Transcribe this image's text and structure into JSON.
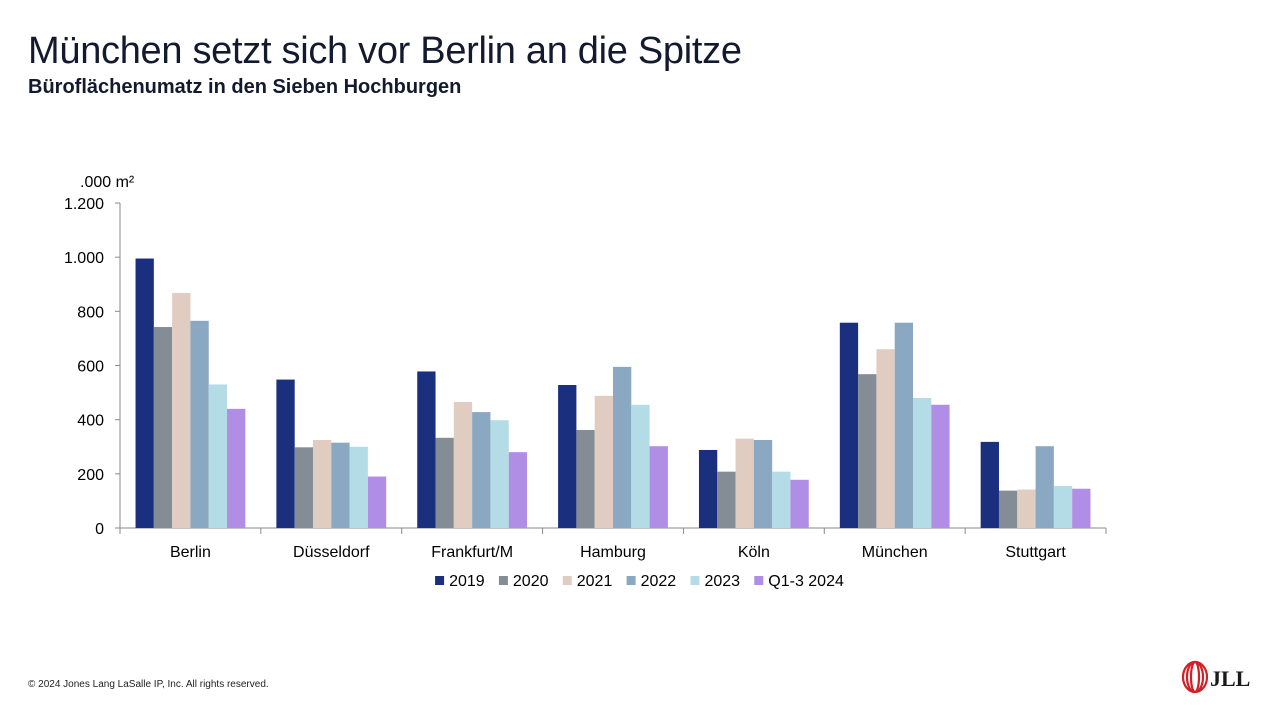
{
  "header": {
    "title": "München setzt sich vor Berlin an die Spitze",
    "subtitle": "Büroflächenumatz in den Sieben Hochburgen"
  },
  "footer": {
    "copyright": "© 2024 Jones Lang LaSalle IP, Inc. All rights reserved.",
    "logo_text": "JLL"
  },
  "chart_data": {
    "type": "bar",
    "ylabel": ".000 m²",
    "ylim": [
      0,
      1200
    ],
    "yticks": [
      0,
      200,
      400,
      600,
      800,
      1000,
      1200
    ],
    "ytick_labels": [
      "0",
      "200",
      "400",
      "600",
      "800",
      "1.000",
      "1.200"
    ],
    "categories": [
      "Berlin",
      "Düsseldorf",
      "Frankfurt/M",
      "Hamburg",
      "Köln",
      "München",
      "Stuttgart"
    ],
    "series": [
      {
        "name": "2019",
        "color": "#1b2f7f",
        "values": [
          995,
          548,
          578,
          528,
          288,
          758,
          318
        ]
      },
      {
        "name": "2020",
        "color": "#848d96",
        "values": [
          742,
          298,
          333,
          362,
          208,
          568,
          138
        ]
      },
      {
        "name": "2021",
        "color": "#e0ccc0",
        "values": [
          868,
          325,
          465,
          488,
          330,
          660,
          142
        ]
      },
      {
        "name": "2022",
        "color": "#8aa8c2",
        "values": [
          765,
          315,
          428,
          595,
          325,
          758,
          302
        ]
      },
      {
        "name": "2023",
        "color": "#b4dce6",
        "values": [
          530,
          300,
          398,
          455,
          208,
          480,
          155
        ]
      },
      {
        "name": "Q1-3 2024",
        "color": "#b18ee6",
        "values": [
          440,
          190,
          280,
          302,
          178,
          455,
          145
        ]
      }
    ],
    "grid": false,
    "legend": "bottom"
  }
}
